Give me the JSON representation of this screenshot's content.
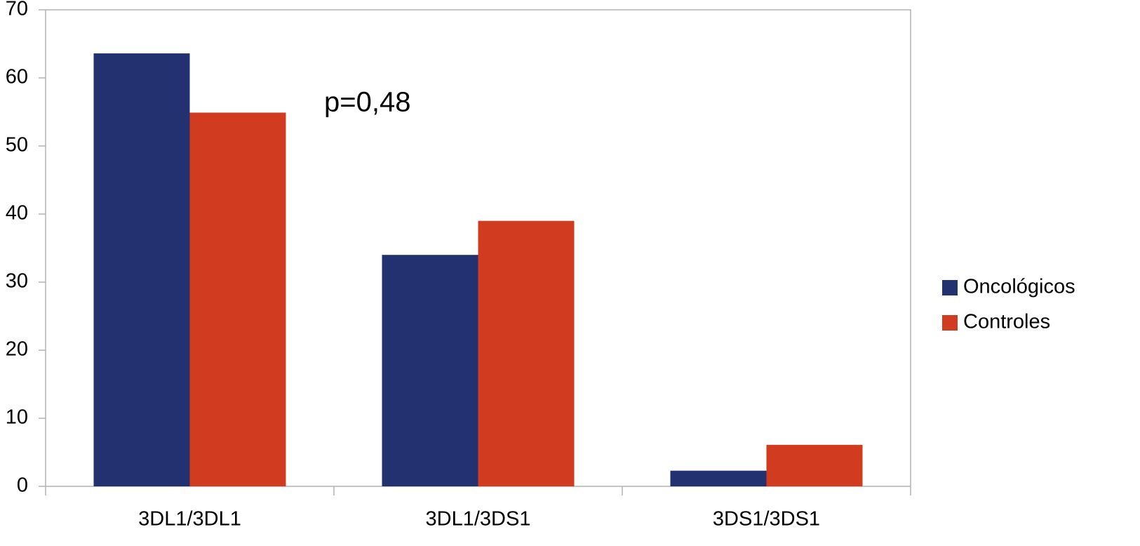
{
  "chart_data": {
    "type": "bar",
    "categories": [
      "3DL1/3DL1",
      "3DL1/3DS1",
      "3DS1/3DS1"
    ],
    "series": [
      {
        "name": "Oncológicos",
        "color": "#233170",
        "values": [
          63.6,
          34.0,
          2.3
        ]
      },
      {
        "name": "Controles",
        "color": "#d13b1f",
        "values": [
          54.9,
          39.0,
          6.1
        ]
      }
    ],
    "ylim": [
      0,
      70
    ],
    "yticks": [
      0,
      10,
      20,
      30,
      40,
      50,
      60,
      70
    ],
    "annotation": "p=0,48",
    "legend": "right"
  }
}
